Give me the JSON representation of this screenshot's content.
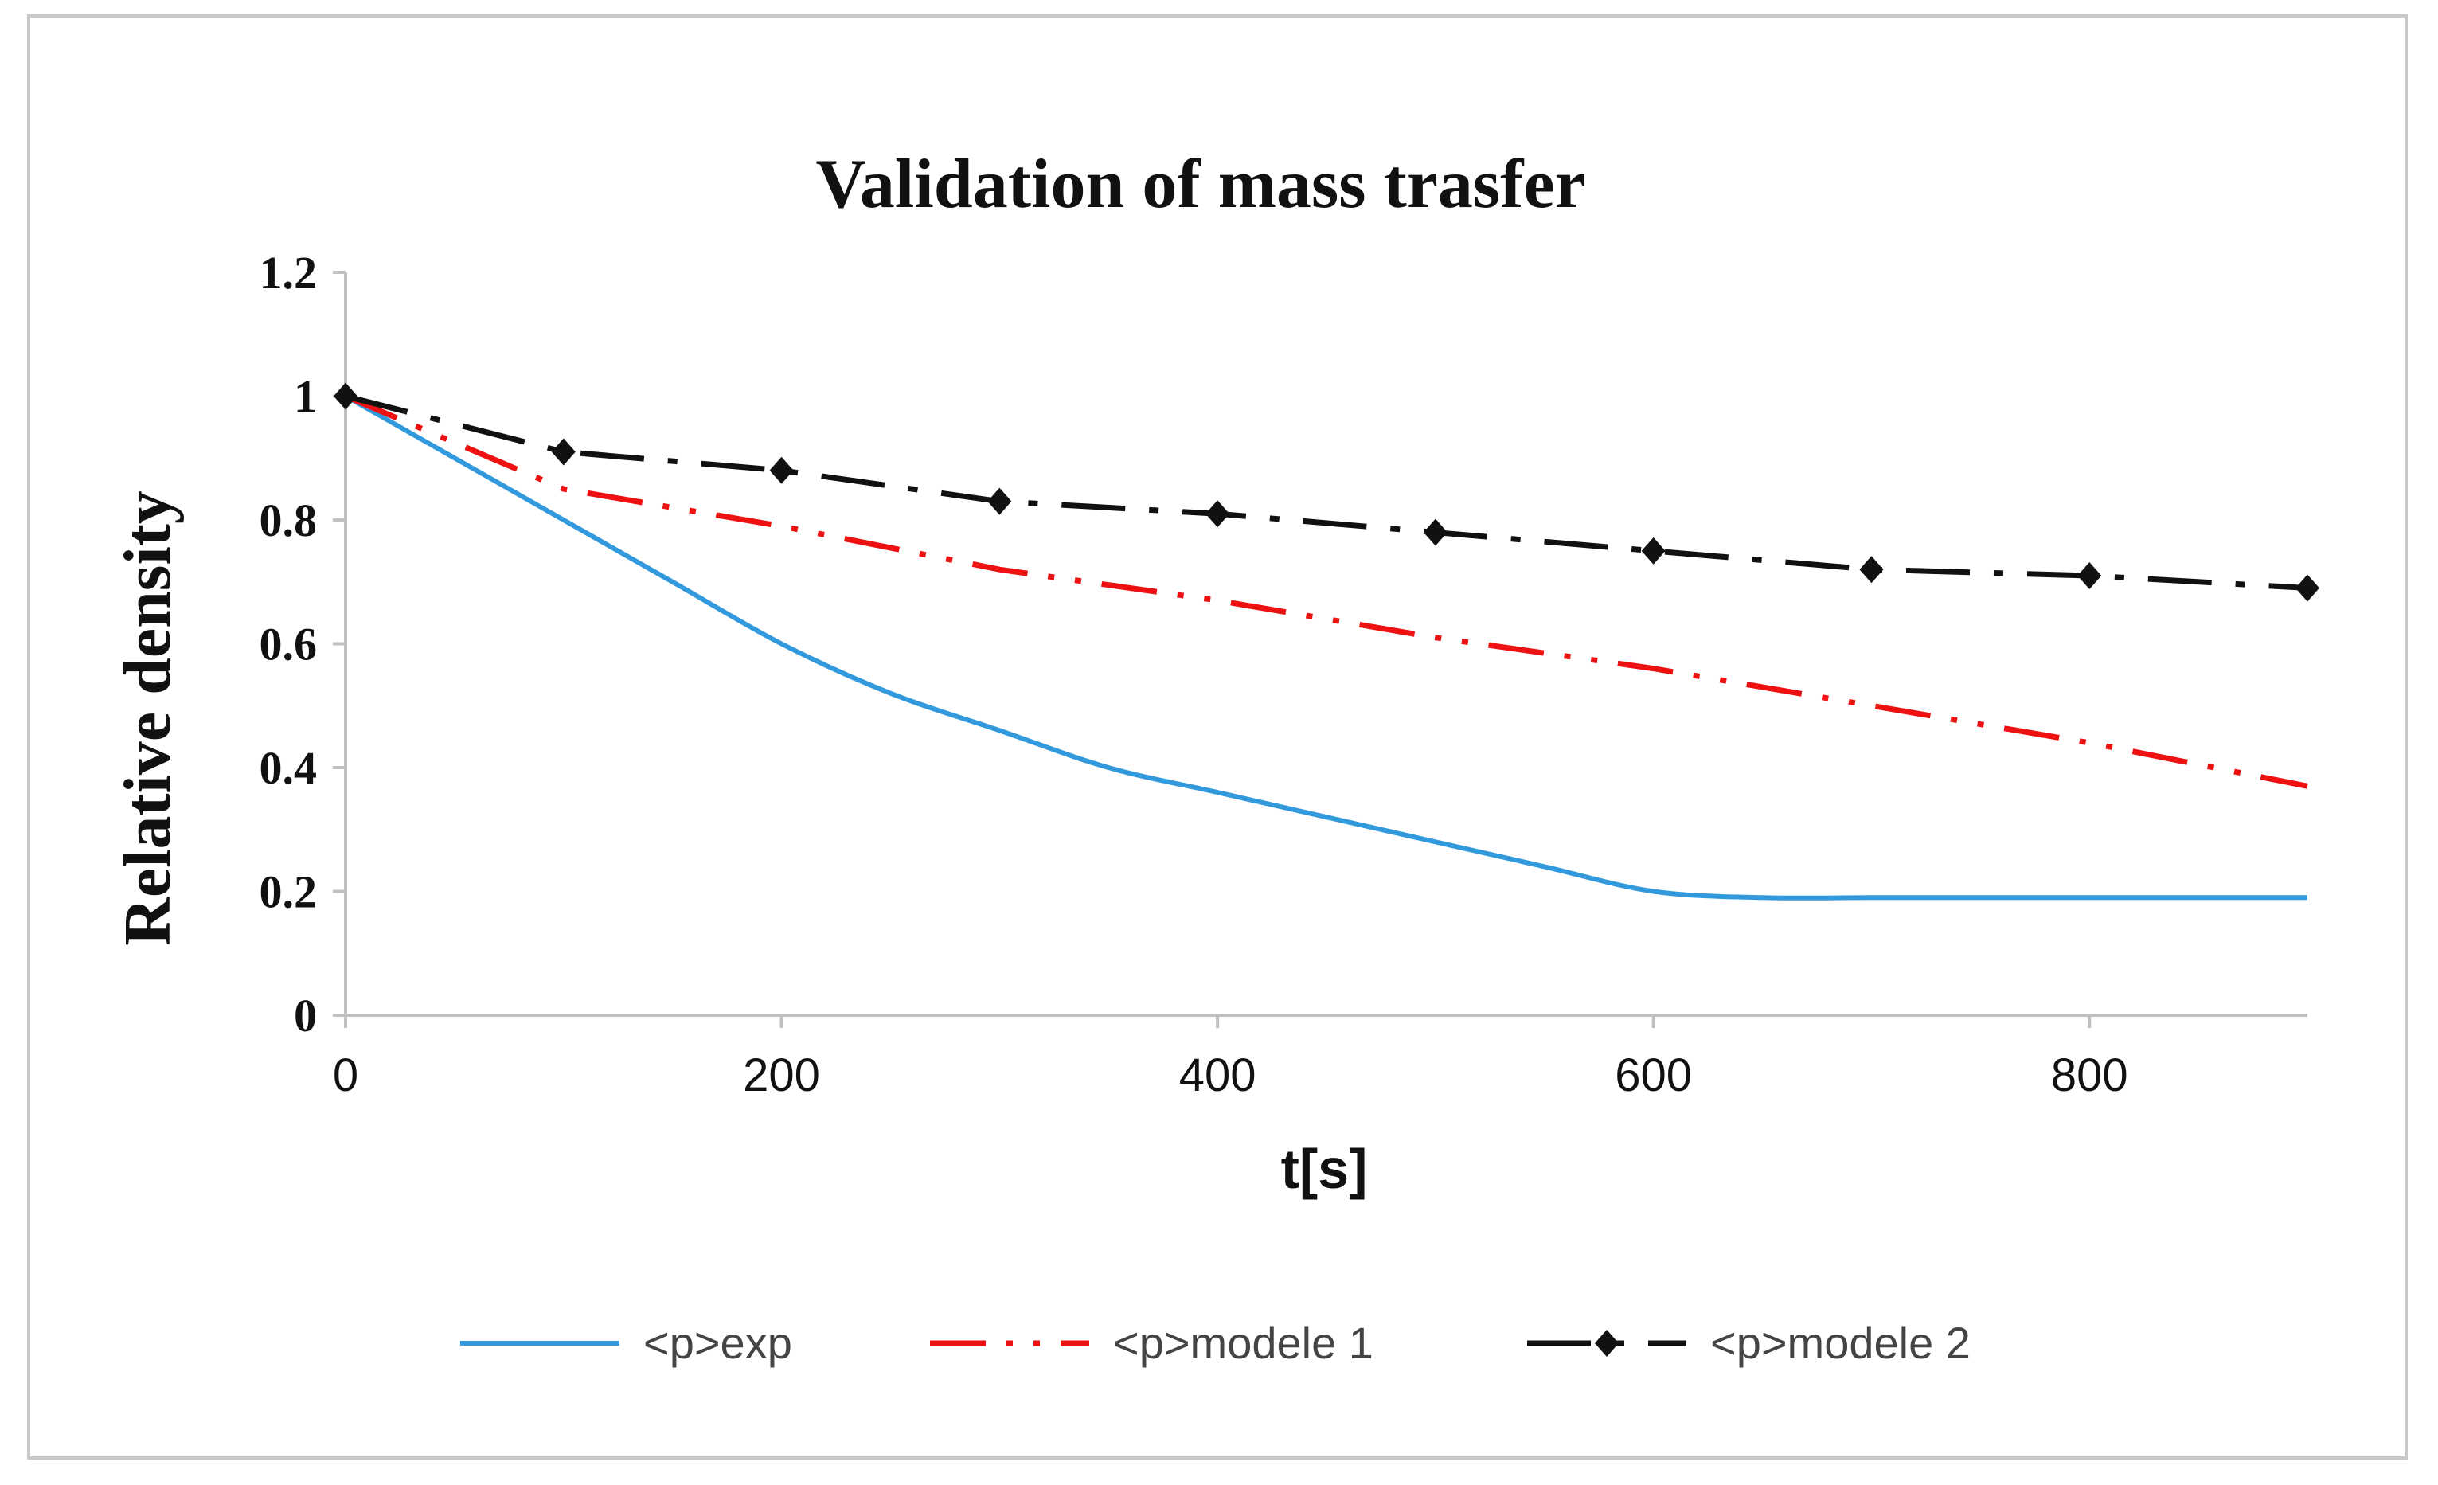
{
  "chart_data": {
    "type": "line",
    "title": "Validation of mass trasfer",
    "xlabel": "t[s]",
    "ylabel": "Relative density",
    "xlim": [
      0,
      900
    ],
    "ylim": [
      0,
      1.2
    ],
    "xticks": [
      0,
      200,
      400,
      600,
      800
    ],
    "xtick_labels": [
      "0",
      "200",
      "400",
      "600",
      "800"
    ],
    "yticks": [
      0,
      0.2,
      0.4,
      0.6,
      0.8,
      1.0,
      1.2
    ],
    "ytick_labels": [
      "0",
      "0.2",
      "0.4",
      "0.6",
      "0.8",
      "1",
      "1.2"
    ],
    "grid": false,
    "legend_position": "bottom",
    "series": [
      {
        "name": "<p>exp",
        "color": "#3399dd",
        "style": "solid",
        "markers": false,
        "x": [
          0,
          50,
          100,
          150,
          200,
          250,
          300,
          350,
          400,
          450,
          500,
          550,
          600,
          650,
          700,
          750,
          800,
          850,
          900
        ],
        "y": [
          1.0,
          0.9,
          0.8,
          0.7,
          0.6,
          0.52,
          0.46,
          0.4,
          0.36,
          0.32,
          0.28,
          0.24,
          0.2,
          0.19,
          0.19,
          0.19,
          0.19,
          0.19,
          0.19
        ]
      },
      {
        "name": "<p>modele 1",
        "color": "#ee1111",
        "style": "dash-dot-dot",
        "markers": false,
        "x": [
          0,
          100,
          200,
          300,
          400,
          500,
          600,
          700,
          800,
          900
        ],
        "y": [
          1.0,
          0.85,
          0.79,
          0.72,
          0.67,
          0.61,
          0.56,
          0.5,
          0.44,
          0.37
        ]
      },
      {
        "name": "<p>modele 2",
        "color": "#111111",
        "style": "dash-dot",
        "markers": true,
        "x": [
          0,
          100,
          200,
          300,
          400,
          500,
          600,
          700,
          800,
          900
        ],
        "y": [
          1.0,
          0.91,
          0.88,
          0.83,
          0.81,
          0.78,
          0.75,
          0.72,
          0.71,
          0.69
        ]
      }
    ]
  }
}
